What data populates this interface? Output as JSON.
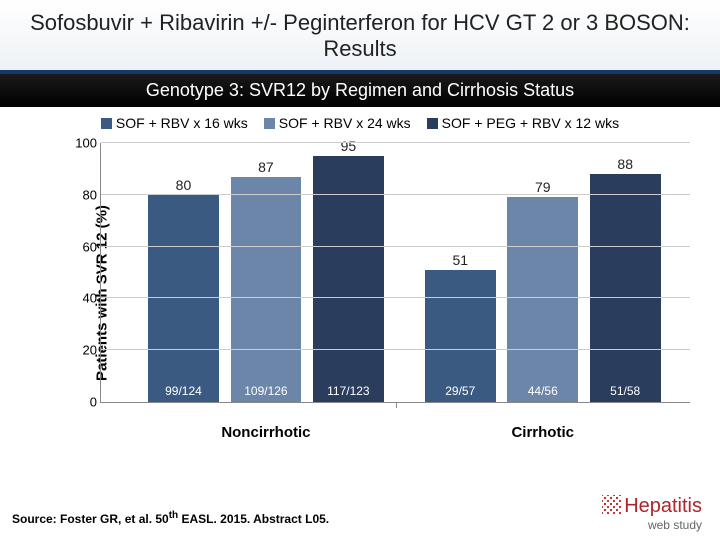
{
  "title": "Sofosbuvir + Ribavirin +/- Peginterferon for HCV GT 2 or 3 BOSON: Results",
  "subtitle": "Genotype 3: SVR12 by Regimen and Cirrhosis Status",
  "ylabel": "Patients with SVR 12 (%)",
  "ylim": [
    0,
    100
  ],
  "ytick_step": 20,
  "categories": [
    "Noncirrhotic",
    "Cirrhotic"
  ],
  "series": [
    {
      "label": "SOF + RBV x 16 wks",
      "color": "#3b5a82"
    },
    {
      "label": "SOF + RBV x 24 wks",
      "color": "#6b86a9"
    },
    {
      "label": "SOF + PEG + RBV x 12 wks",
      "color": "#2a3d5c"
    }
  ],
  "groups": [
    {
      "bars": [
        {
          "value": 80,
          "n": "99/124"
        },
        {
          "value": 87,
          "n": "109/126"
        },
        {
          "value": 95,
          "n": "117/123"
        }
      ]
    },
    {
      "bars": [
        {
          "value": 51,
          "n": "29/57"
        },
        {
          "value": 79,
          "n": "44/56"
        },
        {
          "value": 88,
          "n": "51/58"
        }
      ]
    }
  ],
  "layout": {
    "group_width_pct": 40,
    "group_positions_pct": [
      8,
      55
    ],
    "bar_gap_pct": 2,
    "font_bar_value": 14,
    "font_bar_n": 12
  },
  "source_html": "Source: Foster GR, et al. 50<sup>th</sup> EASL. 2015. Abstract L05.",
  "brand": {
    "name": "Hepatitis",
    "sub": "web study"
  }
}
